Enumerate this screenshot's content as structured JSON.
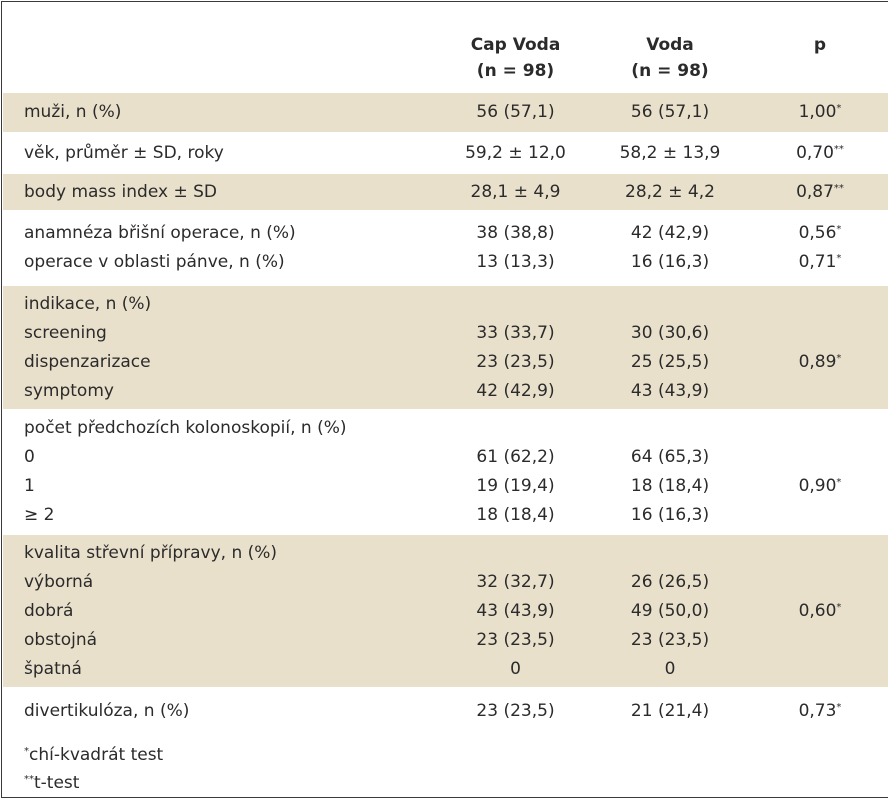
{
  "header": {
    "col1": "",
    "col2_line1": "Cap Voda",
    "col2_line2": "(n = 98)",
    "col3_line1": "Voda",
    "col3_line2": "(n = 98)",
    "col4": "p"
  },
  "rows": {
    "muzi": {
      "label": "muži, n (%)",
      "cap": "56 (57,1)",
      "voda": "56 (57,1)",
      "p": "1,00",
      "p_sup": "*"
    },
    "vek": {
      "label": "věk, průměr ± SD, roky",
      "cap": "59,2 ± 12,0",
      "voda": "58,2 ± 13,9",
      "p": "0,70",
      "p_sup": "**"
    },
    "bmi": {
      "label": "body mass index ± SD",
      "cap": "28,1 ± 4,9",
      "voda": "28,2 ± 4,2",
      "p": "0,87",
      "p_sup": "**"
    },
    "anamneza": {
      "label": "anamnéza břišní operace, n (%)",
      "cap": "38 (38,8)",
      "voda": "42 (42,9)",
      "p": "0,56",
      "p_sup": "*"
    },
    "panev": {
      "label": "operace v oblasti pánve, n (%)",
      "cap": "13 (13,3)",
      "voda": "16 (16,3)",
      "p": "0,71",
      "p_sup": "*"
    },
    "indikace": {
      "label": "indikace, n (%)",
      "items": [
        {
          "label": "screening",
          "cap": "33 (33,7)",
          "voda": "30 (30,6)"
        },
        {
          "label": "dispenzarizace",
          "cap": "23 (23,5)",
          "voda": "25 (25,5)"
        },
        {
          "label": "symptomy",
          "cap": "42 (42,9)",
          "voda": "43 (43,9)"
        }
      ],
      "p": "0,89",
      "p_sup": "*"
    },
    "kolonoskopie": {
      "label": "počet předchozích kolonoskopií, n (%)",
      "items": [
        {
          "label": "0",
          "cap": "61 (62,2)",
          "voda": "64 (65,3)"
        },
        {
          "label": "1",
          "cap": "19 (19,4)",
          "voda": "18 (18,4)"
        },
        {
          "label": "≥ 2",
          "cap": "18 (18,4)",
          "voda": "16 (16,3)"
        }
      ],
      "p": "0,90",
      "p_sup": "*"
    },
    "priprava": {
      "label": "kvalita střevní přípravy, n (%)",
      "items": [
        {
          "label": "výborná",
          "cap": "32 (32,7)",
          "voda": "26 (26,5)"
        },
        {
          "label": "dobrá",
          "cap": "43 (43,9)",
          "voda": "49 (50,0)"
        },
        {
          "label": "obstojná",
          "cap": "23 (23,5)",
          "voda": "23 (23,5)"
        },
        {
          "label": "špatná",
          "cap": "0",
          "voda": "0"
        }
      ],
      "p": "0,60",
      "p_sup": "*"
    },
    "divertikuloza": {
      "label": "divertikulóza, n (%)",
      "cap": "23 (23,5)",
      "voda": "21 (21,4)",
      "p": "0,73",
      "p_sup": "*"
    }
  },
  "footnotes": [
    {
      "mark": "*",
      "text": "chí-kvadrát test"
    },
    {
      "mark": "**",
      "text": "t-test"
    }
  ],
  "colors": {
    "band": "#e9e0cc",
    "border": "#3a3a3a",
    "text": "#2b2b2b"
  }
}
